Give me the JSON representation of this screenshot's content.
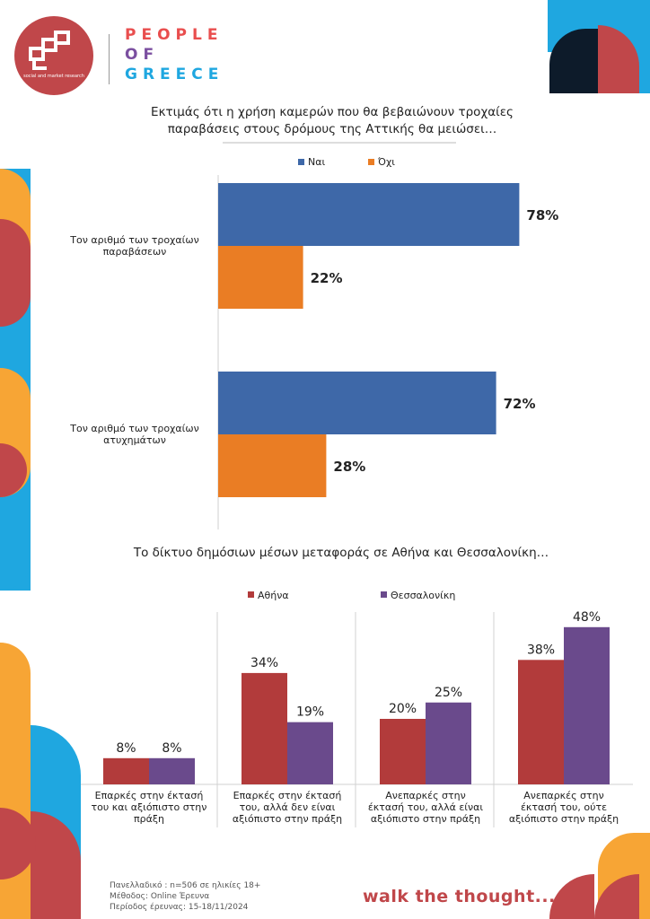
{
  "logo": {
    "subtitle": "social and market research"
  },
  "brand": {
    "line1": "PEOPLE",
    "line2": "OF",
    "line3": "GREECE"
  },
  "colors": {
    "red": "#c0474a",
    "navy": "#0d1b2a",
    "blue": "#1fa7e0",
    "orange": "#f7a535",
    "bar_blue": "#3e68a8",
    "bar_orange": "#ea7d24",
    "bar_red": "#b23b3b",
    "bar_purple": "#6a4a8c"
  },
  "chart_data": [
    {
      "type": "bar",
      "orientation": "horizontal",
      "title": "Εκτιμάς ότι η χρήση καμερών που θα βεβαιώνουν τροχαίες παραβάσεις στους δρόμους της Αττικής θα μειώσει…",
      "title_lines": [
        "Εκτιμάς ότι η χρήση καμερών που θα βεβαιώνουν τροχαίες",
        "παραβάσεις στους δρόμους της Αττικής θα μειώσει…"
      ],
      "categories": [
        "Τον αριθμό των τροχαίων παραβάσεων",
        "Τον αριθμό των τροχαίων ατυχημάτων"
      ],
      "category_lines": [
        [
          "Τον αριθμό των τροχαίων",
          "παραβάσεων"
        ],
        [
          "Τον αριθμό των τροχαίων",
          "ατυχημάτων"
        ]
      ],
      "series": [
        {
          "name": "Ναι",
          "values": [
            78,
            72
          ],
          "labels": [
            "78%",
            "72%"
          ]
        },
        {
          "name": "Όχι",
          "values": [
            22,
            28
          ],
          "labels": [
            "22%",
            "28%"
          ]
        }
      ],
      "xlim": [
        0,
        100
      ],
      "legend": "top"
    },
    {
      "type": "bar",
      "orientation": "vertical",
      "title": "Το δίκτυο δημόσιων μέσων μεταφοράς σε Αθήνα και Θεσσαλονίκη…",
      "categories": [
        "Επαρκές στην έκτασή του και αξιόπιστο στην πράξη",
        "Επαρκές στην έκτασή του, αλλά δεν είναι αξιόπιστο στην πράξη",
        "Ανεπαρκές στην έκτασή του, αλλά είναι αξιόπιστο στην πράξη",
        "Ανεπαρκές στην έκτασή του, ούτε αξιόπιστο στην πράξη"
      ],
      "category_lines": [
        [
          "Επαρκές στην έκτασή",
          "του και αξιόπιστο στην",
          "πράξη"
        ],
        [
          "Επαρκές στην έκτασή",
          "του, αλλά δεν είναι",
          "αξιόπιστο στην πράξη"
        ],
        [
          "Ανεπαρκές στην",
          "έκτασή του, αλλά είναι",
          "αξιόπιστο στην πράξη"
        ],
        [
          "Ανεπαρκές στην",
          "έκτασή του, ούτε",
          "αξιόπιστο στην πράξη"
        ]
      ],
      "series": [
        {
          "name": "Αθήνα",
          "values": [
            8,
            34,
            20,
            38
          ],
          "labels": [
            "8%",
            "34%",
            "20%",
            "38%"
          ]
        },
        {
          "name": "Θεσσαλονίκη",
          "values": [
            8,
            19,
            25,
            48
          ],
          "labels": [
            "8%",
            "19%",
            "25%",
            "48%"
          ]
        }
      ],
      "ylim": [
        0,
        50
      ],
      "legend": "top"
    }
  ],
  "footer": {
    "line1": "Πανελλαδικό : n=506 σε ηλικίες 18+",
    "line2": "Μέθοδος: Online Έρευνα",
    "line3": "Περίοδος έρευνας: 15-18/11/2024",
    "tagline": "walk the thought..."
  }
}
